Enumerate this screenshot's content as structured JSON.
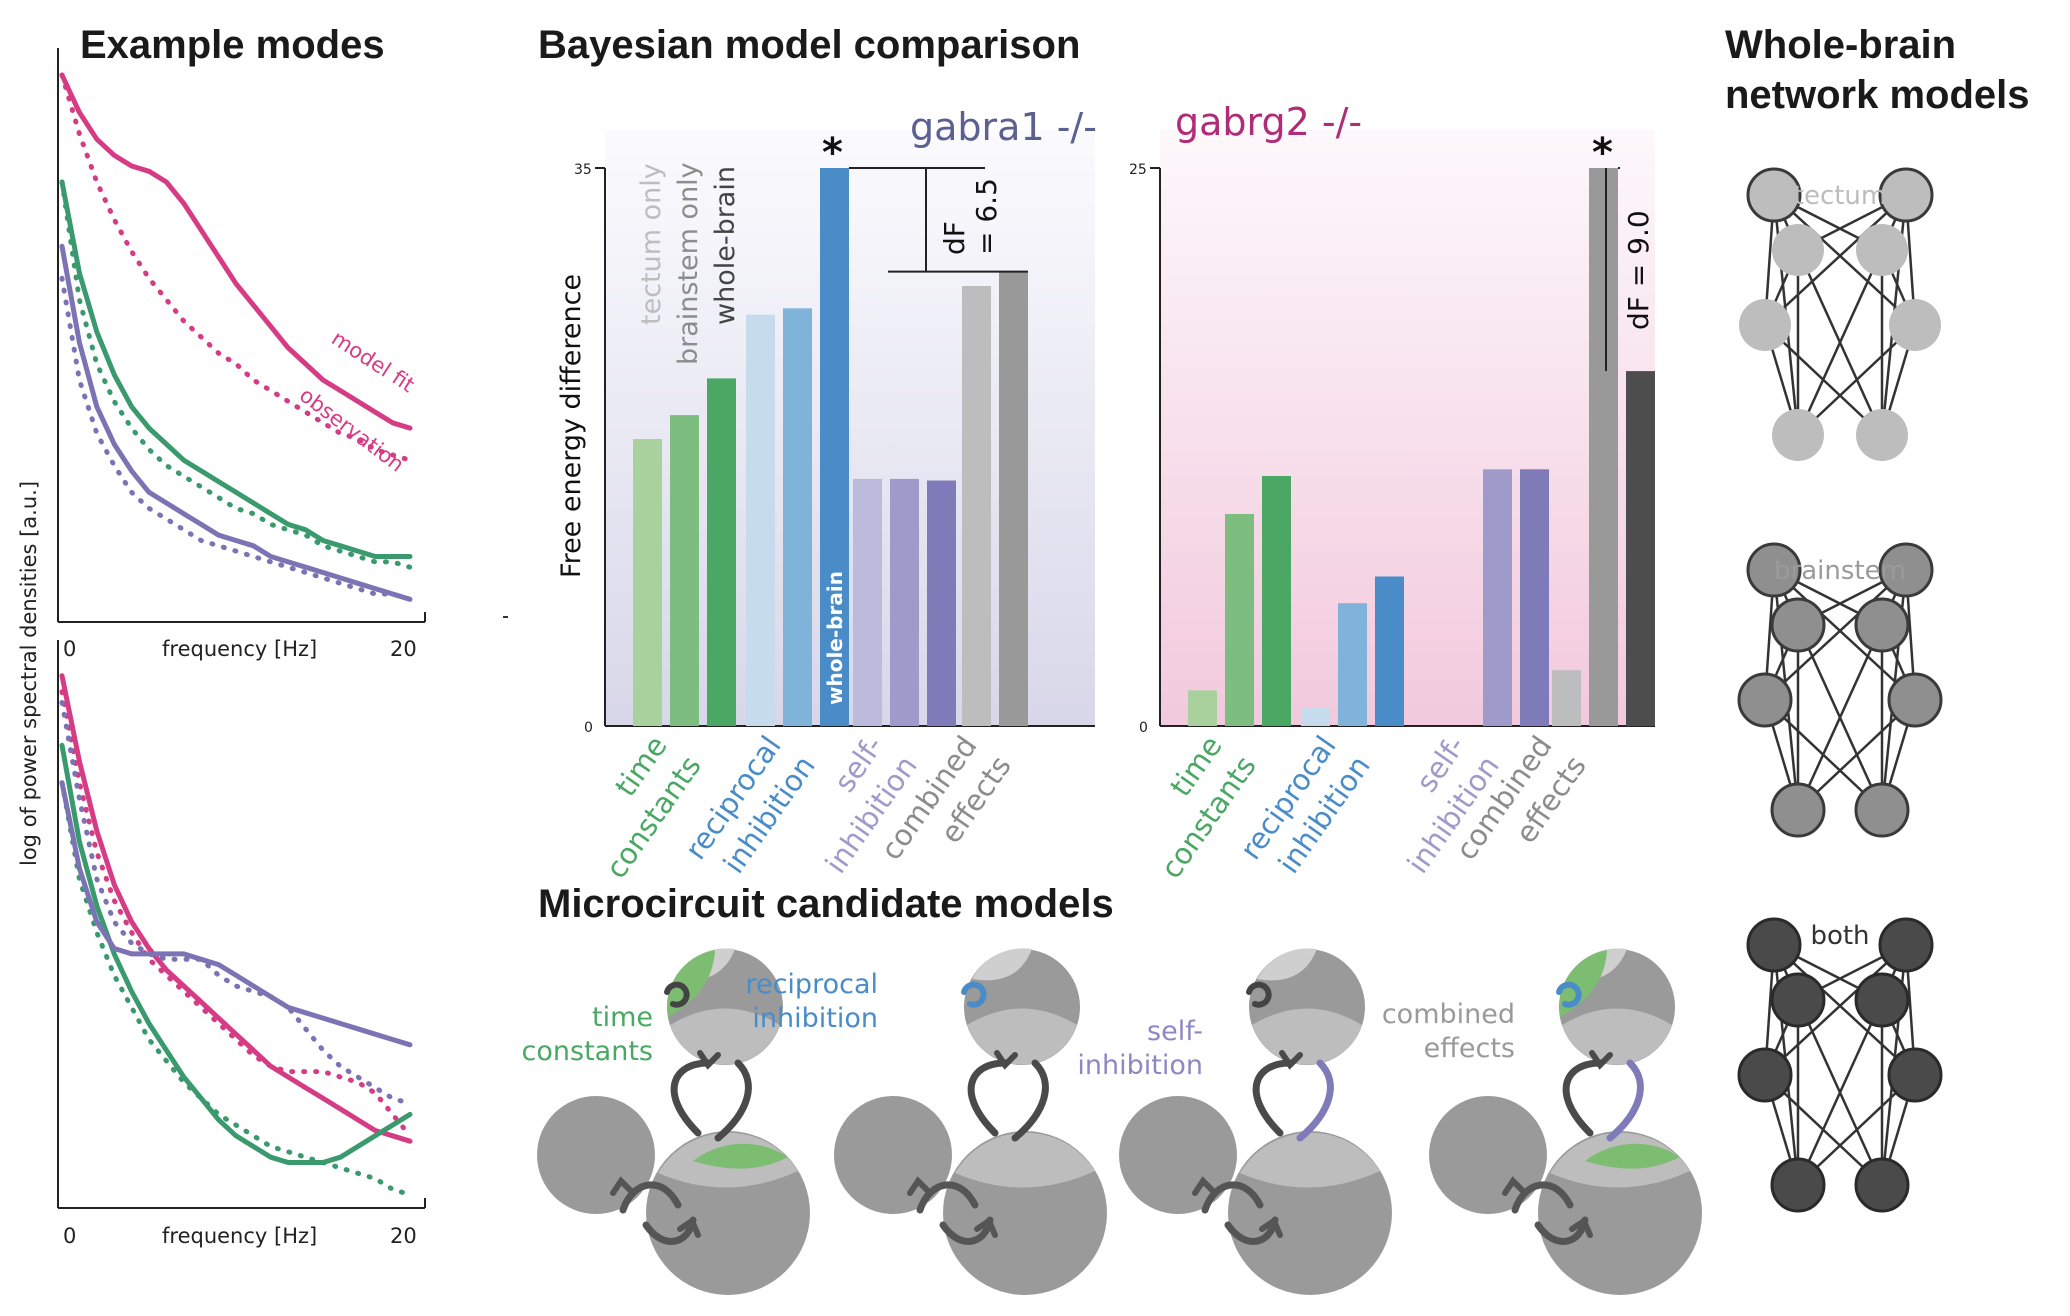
{
  "titles": {
    "example_modes": "Example modes",
    "bayesian": "Bayesian model comparison",
    "whole_brain": [
      "Whole-brain",
      "network models"
    ],
    "microcircuit": "Microcircuit candidate models"
  },
  "colors": {
    "pink": "#d63c84",
    "green": "#3a9a6e",
    "purple": "#7b73b4",
    "blue": "#4a8cc8",
    "grey": "#9a9a9a",
    "dark": "#3f3f3f"
  },
  "chart_data": [
    {
      "type": "line",
      "panel": "example-modes-top",
      "xlabel": "frequency [Hz]",
      "ylabel": "log of power spectral densities [a.u.]",
      "xticks": [
        "0",
        "20"
      ],
      "xlim": [
        0,
        20
      ],
      "legend": [
        "model fit",
        "observation"
      ],
      "series": [
        {
          "color": "pink",
          "style": "solid",
          "x": [
            0,
            1,
            2,
            3,
            4,
            5,
            6,
            7,
            8,
            9,
            10,
            11,
            12,
            13,
            14,
            15,
            16,
            17,
            18,
            19,
            20
          ],
          "y": [
            1.0,
            0.93,
            0.88,
            0.85,
            0.83,
            0.82,
            0.8,
            0.76,
            0.71,
            0.66,
            0.61,
            0.57,
            0.53,
            0.49,
            0.46,
            0.43,
            0.41,
            0.39,
            0.37,
            0.35,
            0.34
          ]
        },
        {
          "color": "pink",
          "style": "dotted",
          "x": [
            0,
            1,
            2,
            3,
            4,
            5,
            6,
            7,
            8,
            9,
            10,
            11,
            12,
            13,
            14,
            15,
            16,
            17,
            18,
            19,
            20
          ],
          "y": [
            1.0,
            0.89,
            0.8,
            0.73,
            0.67,
            0.62,
            0.58,
            0.54,
            0.51,
            0.48,
            0.46,
            0.43,
            0.41,
            0.39,
            0.37,
            0.35,
            0.33,
            0.32,
            0.3,
            0.29,
            0.28
          ]
        },
        {
          "color": "green",
          "style": "solid",
          "x": [
            0,
            1,
            2,
            3,
            4,
            5,
            6,
            7,
            8,
            9,
            10,
            11,
            12,
            13,
            14,
            15,
            16,
            17,
            18,
            19,
            20
          ],
          "y": [
            0.8,
            0.63,
            0.52,
            0.44,
            0.38,
            0.34,
            0.31,
            0.28,
            0.26,
            0.24,
            0.22,
            0.2,
            0.18,
            0.16,
            0.15,
            0.13,
            0.12,
            0.11,
            0.1,
            0.1,
            0.1
          ]
        },
        {
          "color": "green",
          "style": "dotted",
          "x": [
            0,
            1,
            2,
            3,
            4,
            5,
            6,
            7,
            8,
            9,
            10,
            11,
            12,
            13,
            14,
            15,
            16,
            17,
            18,
            19,
            20
          ],
          "y": [
            0.8,
            0.58,
            0.46,
            0.39,
            0.34,
            0.3,
            0.27,
            0.25,
            0.23,
            0.21,
            0.19,
            0.18,
            0.16,
            0.15,
            0.14,
            0.12,
            0.11,
            0.1,
            0.09,
            0.09,
            0.08
          ]
        },
        {
          "color": "purple",
          "style": "solid",
          "x": [
            0,
            1,
            2,
            3,
            4,
            5,
            6,
            7,
            8,
            9,
            10,
            11,
            12,
            13,
            14,
            15,
            16,
            17,
            18,
            19,
            20
          ],
          "y": [
            0.68,
            0.5,
            0.38,
            0.31,
            0.26,
            0.22,
            0.2,
            0.18,
            0.16,
            0.14,
            0.13,
            0.12,
            0.1,
            0.09,
            0.08,
            0.07,
            0.06,
            0.05,
            0.04,
            0.03,
            0.02
          ]
        },
        {
          "color": "purple",
          "style": "dotted",
          "x": [
            0,
            1,
            2,
            3,
            4,
            5,
            6,
            7,
            8,
            9,
            10,
            11,
            12,
            13,
            14,
            15,
            16,
            17,
            18,
            19,
            20
          ],
          "y": [
            0.62,
            0.43,
            0.33,
            0.27,
            0.22,
            0.19,
            0.17,
            0.15,
            0.13,
            0.12,
            0.11,
            0.1,
            0.09,
            0.08,
            0.07,
            0.06,
            0.05,
            0.04,
            0.03,
            0.03,
            0.02
          ]
        }
      ]
    },
    {
      "type": "line",
      "panel": "example-modes-bottom",
      "xlabel": "frequency [Hz]",
      "ylabel": "",
      "xticks": [
        "0",
        "20"
      ],
      "xlim": [
        0,
        20
      ],
      "series": [
        {
          "color": "pink",
          "style": "solid",
          "x": [
            0,
            1,
            2,
            3,
            4,
            5,
            6,
            7,
            8,
            9,
            10,
            11,
            12,
            13,
            14,
            15,
            16,
            17,
            18,
            19,
            20
          ],
          "y": [
            0.98,
            0.82,
            0.69,
            0.59,
            0.52,
            0.47,
            0.43,
            0.4,
            0.37,
            0.34,
            0.31,
            0.28,
            0.25,
            0.23,
            0.21,
            0.19,
            0.17,
            0.15,
            0.13,
            0.12,
            0.11
          ]
        },
        {
          "color": "pink",
          "style": "dotted",
          "x": [
            0,
            1,
            2,
            3,
            4,
            5,
            6,
            7,
            8,
            9,
            10,
            11,
            12,
            13,
            14,
            15,
            16,
            17,
            18,
            19,
            20
          ],
          "y": [
            0.95,
            0.78,
            0.65,
            0.56,
            0.5,
            0.45,
            0.42,
            0.39,
            0.36,
            0.33,
            0.3,
            0.27,
            0.25,
            0.24,
            0.24,
            0.24,
            0.23,
            0.22,
            0.2,
            0.16,
            0.12
          ]
        },
        {
          "color": "green",
          "style": "solid",
          "x": [
            0,
            1,
            2,
            3,
            4,
            5,
            6,
            7,
            8,
            9,
            10,
            11,
            12,
            13,
            14,
            15,
            16,
            17,
            18,
            19,
            20
          ],
          "y": [
            0.85,
            0.67,
            0.55,
            0.46,
            0.39,
            0.33,
            0.28,
            0.23,
            0.19,
            0.15,
            0.12,
            0.1,
            0.08,
            0.07,
            0.07,
            0.07,
            0.08,
            0.1,
            0.12,
            0.14,
            0.16
          ]
        },
        {
          "color": "green",
          "style": "dotted",
          "x": [
            0,
            1,
            2,
            3,
            4,
            5,
            6,
            7,
            8,
            9,
            10,
            11,
            12,
            13,
            14,
            15,
            16,
            17,
            18,
            19,
            20
          ],
          "y": [
            0.78,
            0.6,
            0.5,
            0.42,
            0.36,
            0.3,
            0.26,
            0.22,
            0.19,
            0.16,
            0.14,
            0.12,
            0.1,
            0.09,
            0.08,
            0.07,
            0.06,
            0.05,
            0.04,
            0.02,
            0.01
          ]
        },
        {
          "color": "purple",
          "style": "solid",
          "x": [
            0,
            1,
            2,
            3,
            4,
            5,
            6,
            7,
            8,
            9,
            10,
            11,
            12,
            13,
            14,
            15,
            16,
            17,
            18,
            19,
            20
          ],
          "y": [
            0.78,
            0.62,
            0.52,
            0.47,
            0.46,
            0.46,
            0.46,
            0.46,
            0.45,
            0.44,
            0.42,
            0.4,
            0.38,
            0.36,
            0.35,
            0.34,
            0.33,
            0.32,
            0.31,
            0.3,
            0.29
          ]
        },
        {
          "color": "purple",
          "style": "dotted",
          "x": [
            0,
            1,
            2,
            3,
            4,
            5,
            6,
            7,
            8,
            9,
            10,
            11,
            12,
            13,
            14,
            15,
            16,
            17,
            18,
            19,
            20
          ],
          "y": [
            0.93,
            0.75,
            0.6,
            0.52,
            0.48,
            0.46,
            0.45,
            0.45,
            0.45,
            0.42,
            0.4,
            0.39,
            0.38,
            0.36,
            0.32,
            0.28,
            0.25,
            0.23,
            0.21,
            0.19,
            0.18
          ]
        }
      ]
    },
    {
      "type": "bar",
      "panel": "gabra1",
      "title": "gabra1 -/-",
      "ylabel": "Free energy difference",
      "ylim": [
        0,
        35
      ],
      "yticks": [
        "0",
        "35"
      ],
      "categories": [
        "time constants",
        "reciprocal inhibition",
        "self-inhibition",
        "combined effects"
      ],
      "legend": [
        "tectum only",
        "brainstem only",
        "whole-brain"
      ],
      "bars": [
        {
          "group": 0,
          "model": 0,
          "value": 18.0,
          "color": "#a9d19e"
        },
        {
          "group": 0,
          "model": 1,
          "value": 19.5,
          "color": "#7dbd80"
        },
        {
          "group": 0,
          "model": 2,
          "value": 21.8,
          "color": "#4aa864"
        },
        {
          "group": 1,
          "model": 0,
          "value": 25.8,
          "color": "#c6dced"
        },
        {
          "group": 1,
          "model": 1,
          "value": 26.2,
          "color": "#7fb3da"
        },
        {
          "group": 1,
          "model": 2,
          "value": 35.0,
          "color": "#4a8cc8"
        },
        {
          "group": 2,
          "model": 0,
          "value": 15.5,
          "color": "#bdbbdc"
        },
        {
          "group": 2,
          "model": 1,
          "value": 15.5,
          "color": "#9e9bcb"
        },
        {
          "group": 2,
          "model": 2,
          "value": 15.4,
          "color": "#7f7bb8"
        },
        {
          "group": 3,
          "model": 0,
          "value": 27.6,
          "color": "#bdbdbd"
        },
        {
          "group": 3,
          "model": 1,
          "value": 28.5,
          "color": "#999999"
        }
      ],
      "best_bar_label": "whole-brain",
      "star": "*",
      "df_label": [
        "dF",
        "= 6.5"
      ]
    },
    {
      "type": "bar",
      "panel": "gabrg2",
      "title": "gabrg2 -/-",
      "ylabel": "",
      "ylim": [
        0,
        25
      ],
      "yticks": [
        "0",
        "25"
      ],
      "categories": [
        "time constants",
        "reciprocal inhibition",
        "self-inhibition",
        "combined effects"
      ],
      "bars": [
        {
          "group": 0,
          "model": 0,
          "value": 1.6,
          "color": "#a9d19e"
        },
        {
          "group": 0,
          "model": 1,
          "value": 9.5,
          "color": "#7dbd80"
        },
        {
          "group": 0,
          "model": 2,
          "value": 11.2,
          "color": "#4aa864"
        },
        {
          "group": 1,
          "model": 0,
          "value": 0.8,
          "color": "#c6dced"
        },
        {
          "group": 1,
          "model": 1,
          "value": 5.5,
          "color": "#7fb3da"
        },
        {
          "group": 1,
          "model": 2,
          "value": 6.7,
          "color": "#4a8cc8"
        },
        {
          "group": 2,
          "model": 1,
          "value": 11.5,
          "color": "#9e9bcb"
        },
        {
          "group": 2,
          "model": 2,
          "value": 11.5,
          "color": "#7f7bb8"
        },
        {
          "group": 3,
          "model": 0,
          "value": 2.5,
          "color": "#bdbdbd"
        },
        {
          "group": 3,
          "model": 1,
          "value": 25.0,
          "color": "#999999"
        },
        {
          "group": 3,
          "model": 2,
          "value": 15.9,
          "color": "#4d4d4d"
        }
      ],
      "star": "*",
      "df_label": [
        "dF = 9.0"
      ]
    }
  ],
  "micro_labels": [
    [
      "time",
      "constants"
    ],
    [
      "reciprocal",
      "inhibition"
    ],
    [
      "self-",
      "inhibition"
    ],
    [
      "combined",
      "effects"
    ]
  ],
  "networks": [
    {
      "label": "tectum",
      "fill": "#bdbdbd",
      "stroke": "#3a3a3a"
    },
    {
      "label": "brainstem",
      "fill": "#8f8f8f",
      "stroke": "#3a3a3a"
    },
    {
      "label": "both",
      "fill": "#4a4a4a",
      "stroke": "#2a2a2a"
    }
  ]
}
